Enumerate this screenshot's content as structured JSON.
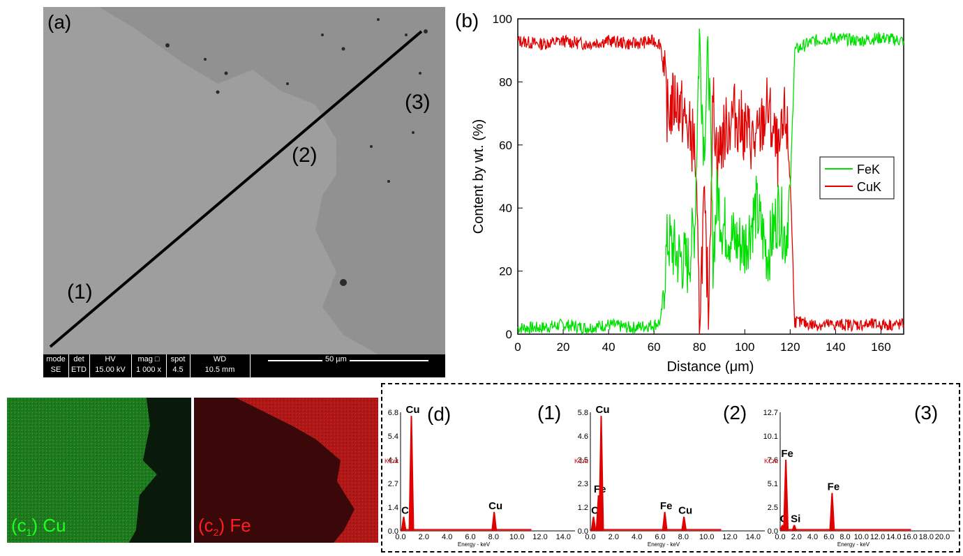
{
  "panel_a": {
    "label": "(a)",
    "region_labels": [
      "(1)",
      "(2)",
      "(3)"
    ],
    "info_bar": {
      "mode": {
        "header": "mode",
        "value": "SE"
      },
      "det": {
        "header": "det",
        "value": "ETD"
      },
      "hv": {
        "header": "HV",
        "value": "15.00 kV"
      },
      "mag": {
        "header": "mag □",
        "value": "1 000 x"
      },
      "spot": {
        "header": "spot",
        "value": "4.5"
      },
      "wd": {
        "header": "WD",
        "value": "10.5 mm"
      },
      "scale": "50 µm"
    }
  },
  "panel_b": {
    "label": "(b)",
    "legend": [
      "FeK",
      "CuK"
    ],
    "colors": {
      "FeK": "#00e000",
      "CuK": "#e00000"
    }
  },
  "panel_c1": {
    "label_main": "(c",
    "label_sub": "1",
    "label_rest": ") Cu",
    "color": "#20ff20"
  },
  "panel_c2": {
    "label_main": "(c",
    "label_sub": "2",
    "label_rest": ") Fe",
    "color": "#ff2020"
  },
  "panel_d": {
    "label": "(d)",
    "spectra": [
      {
        "id": "(1)",
        "y_ticks": [
          "6.8",
          "5.4",
          "4.1",
          "2.7",
          "1.4",
          "0.0"
        ],
        "x_ticks": [
          "0.0",
          "2.0",
          "4.0",
          "6.0",
          "8.0",
          "10.0",
          "12.0",
          "14.0"
        ],
        "peaks": [
          "Cu",
          "C",
          "Cu"
        ]
      },
      {
        "id": "(2)",
        "y_ticks": [
          "5.8",
          "4.6",
          "3.5",
          "2.3",
          "1.2",
          "0.0"
        ],
        "x_ticks": [
          "0.0",
          "2.0",
          "4.0",
          "6.0",
          "8.0",
          "10.0",
          "12.0",
          "14.0"
        ],
        "peaks": [
          "Cu",
          "Fe",
          "C",
          "Fe",
          "Cu"
        ]
      },
      {
        "id": "(3)",
        "y_ticks": [
          "12.7",
          "10.1",
          "7.6",
          "5.1",
          "2.5",
          "0.0"
        ],
        "x_ticks": [
          "0.0",
          "2.0",
          "4.0",
          "6.0",
          "8.0",
          "10.0",
          "12.0",
          "14.0",
          "16.0",
          "18.0",
          "20.0"
        ],
        "peaks": [
          "Fe",
          "C",
          "Si",
          "Fe"
        ]
      }
    ],
    "kcnt_label": "KCnt",
    "energy_label": "Energy - keV"
  },
  "chart_data": {
    "type": "line",
    "xlabel": "Distance (μm)",
    "ylabel": "Content by wt. (%)",
    "xlim": [
      0,
      170
    ],
    "ylim": [
      0,
      100
    ],
    "x_ticks": [
      0,
      20,
      40,
      60,
      80,
      100,
      120,
      140,
      160
    ],
    "y_ticks": [
      0,
      20,
      40,
      60,
      80,
      100
    ],
    "legend_position": "right",
    "series": [
      {
        "name": "FeK",
        "x": [
          0,
          10,
          20,
          30,
          40,
          50,
          60,
          63,
          66,
          70,
          75,
          78,
          80,
          82,
          84,
          86,
          88,
          90,
          95,
          100,
          105,
          110,
          115,
          118,
          120,
          122,
          130,
          140,
          150,
          160,
          170
        ],
        "values": [
          2,
          2,
          3,
          2,
          3,
          2,
          3,
          4,
          30,
          25,
          22,
          35,
          95,
          60,
          90,
          25,
          45,
          35,
          30,
          28,
          40,
          25,
          40,
          30,
          45,
          90,
          93,
          94,
          93,
          94,
          93
        ]
      },
      {
        "name": "CuK",
        "x": [
          0,
          10,
          20,
          30,
          40,
          50,
          60,
          63,
          66,
          70,
          75,
          78,
          80,
          82,
          84,
          86,
          88,
          90,
          95,
          100,
          105,
          110,
          115,
          118,
          120,
          122,
          130,
          140,
          150,
          160,
          170
        ],
        "values": [
          93,
          92,
          93,
          92,
          93,
          92,
          93,
          92,
          70,
          75,
          65,
          60,
          5,
          40,
          10,
          75,
          55,
          62,
          70,
          65,
          60,
          72,
          55,
          70,
          50,
          4,
          3,
          3,
          3,
          3,
          3
        ]
      }
    ]
  }
}
